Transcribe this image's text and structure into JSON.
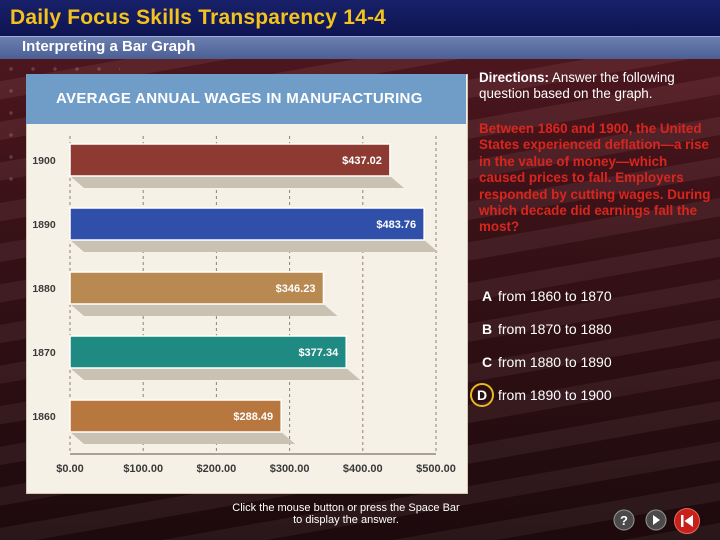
{
  "header": {
    "title": "Daily Focus Skills Transparency 14-4",
    "subtitle": "Interpreting a Bar Graph"
  },
  "chart_data": {
    "type": "bar",
    "orientation": "horizontal",
    "title": "AVERAGE ANNUAL WAGES IN MANUFACTURING",
    "categories": [
      "1900",
      "1890",
      "1880",
      "1870",
      "1860"
    ],
    "values": [
      437.02,
      483.76,
      346.23,
      377.34,
      288.49
    ],
    "labels": [
      "$437.02",
      "$483.76",
      "$346.23",
      "$377.34",
      "$288.49"
    ],
    "bar_colors": [
      "#8c3a32",
      "#2f4fa8",
      "#b88950",
      "#1f8a82",
      "#b8773f"
    ],
    "xlim": [
      0,
      500
    ],
    "xticks": [
      "$0.00",
      "$100.00",
      "$200.00",
      "$300.00",
      "$400.00",
      "$500.00"
    ],
    "grid": true
  },
  "directions": {
    "label": "Directions:",
    "text": " Answer the following question based on the graph."
  },
  "question": "Between 1860 and 1900, the United States experienced deflation—a rise in the value of money—which caused prices to fall. Employers responded by cutting wages. During which decade did earnings fall the most?",
  "options": [
    {
      "letter": "A",
      "text": "from 1860 to 1870"
    },
    {
      "letter": "B",
      "text": "from 1870 to 1880"
    },
    {
      "letter": "C",
      "text": "from 1880 to 1890"
    },
    {
      "letter": "D",
      "text": "from 1890 to 1900"
    }
  ],
  "bottom_note": "Click the mouse button or press the Space Bar to display the answer.",
  "nav": {
    "icons": [
      "help-icon",
      "next-icon"
    ],
    "home_icon": "back-to-start-icon"
  }
}
